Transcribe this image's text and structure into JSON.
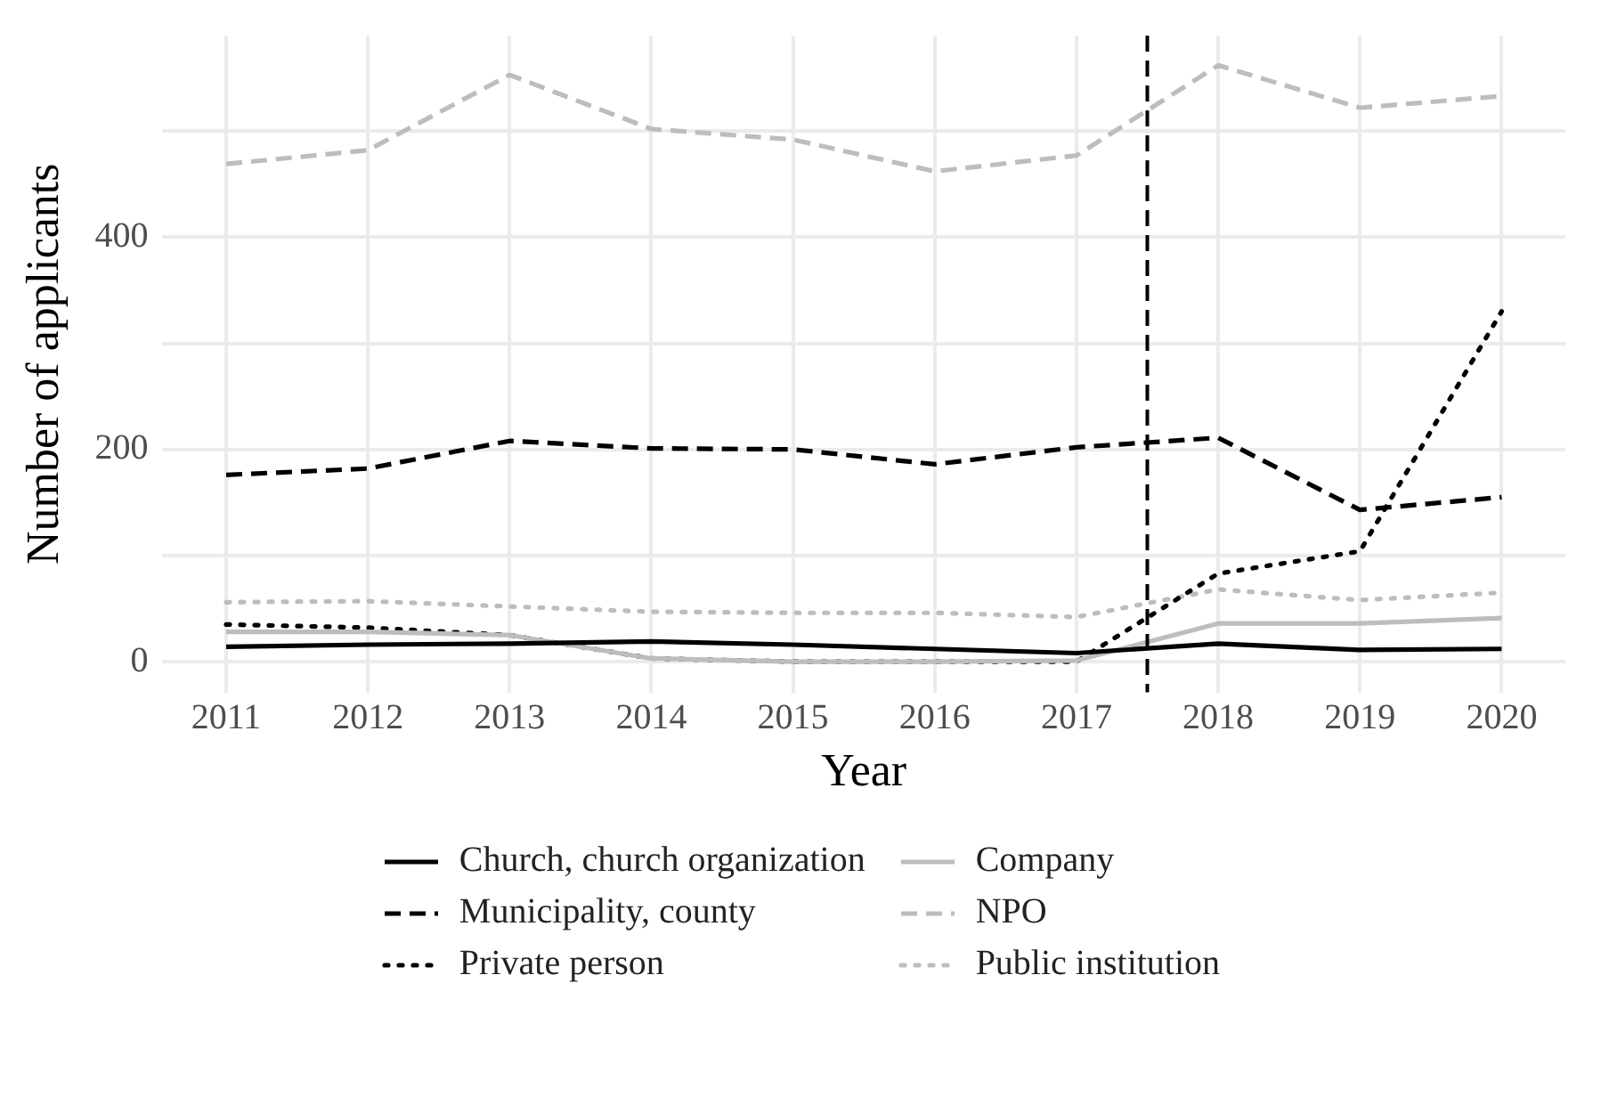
{
  "chart_data": {
    "type": "line",
    "xlabel": "Year",
    "ylabel": "Number of applicants",
    "x": [
      2011,
      2012,
      2013,
      2014,
      2015,
      2016,
      2017,
      2018,
      2019,
      2020
    ],
    "xlim": [
      2010.55,
      2020.45
    ],
    "xticks": [
      2011,
      2012,
      2013,
      2014,
      2015,
      2016,
      2017,
      2018,
      2019,
      2020
    ],
    "ylim": [
      -29,
      590
    ],
    "yticks": [
      0,
      {
        "value": 100,
        "label": null
      },
      200,
      {
        "value": 300,
        "label": null
      },
      400,
      {
        "value": 500,
        "label": null
      }
    ],
    "grid": true,
    "legend": "bottom",
    "marker": "none",
    "series": [
      {
        "name": "Church, church organization",
        "color": "#000000",
        "line_style": "solid",
        "values": [
          14,
          16,
          17,
          19,
          16,
          12,
          8,
          17,
          11,
          12
        ]
      },
      {
        "name": "Company",
        "color": "#bdbdbd",
        "line_style": "solid",
        "values": [
          28,
          28,
          25,
          3,
          0,
          0,
          1,
          36,
          36,
          41
        ]
      },
      {
        "name": "Municipality, county",
        "color": "#000000",
        "line_style": "dashed",
        "values": [
          176,
          182,
          208,
          201,
          200,
          186,
          202,
          211,
          143,
          155
        ]
      },
      {
        "name": "NPO",
        "color": "#bdbdbd",
        "line_style": "dashed",
        "values": [
          469,
          482,
          553,
          502,
          492,
          462,
          477,
          562,
          522,
          533
        ]
      },
      {
        "name": "Private person",
        "color": "#000000",
        "line_style": "dotted",
        "values": [
          35,
          32,
          25,
          3,
          0,
          0,
          0,
          83,
          104,
          330
        ]
      },
      {
        "name": "Public institution",
        "color": "#bdbdbd",
        "line_style": "dotted",
        "values": [
          56,
          57,
          52,
          47,
          46,
          46,
          42,
          68,
          58,
          65
        ]
      }
    ],
    "ref_lines": [
      {
        "axis": "x",
        "value": 2017.5,
        "color": "#000000",
        "line_style": "dashed"
      }
    ]
  }
}
